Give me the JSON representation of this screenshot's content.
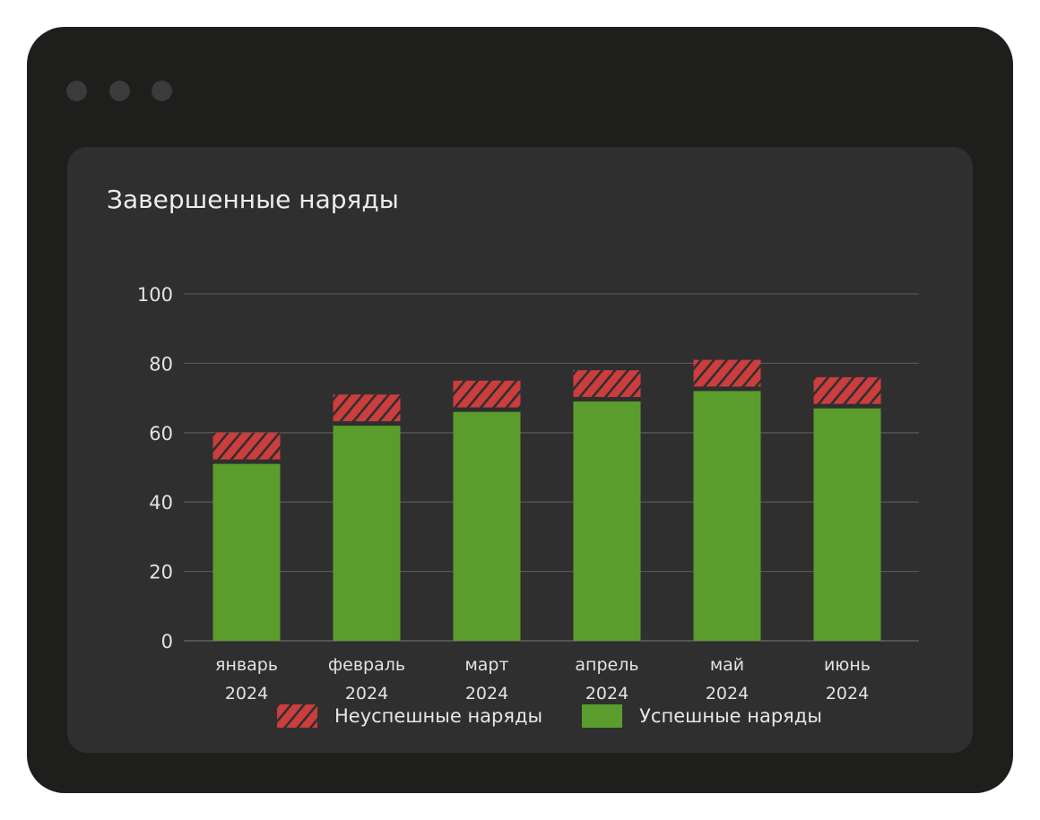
{
  "chart_data": {
    "type": "bar",
    "stacked": true,
    "title": "Завершенные наряды",
    "categories": [
      [
        "январь",
        "2024"
      ],
      [
        "февраль",
        "2024"
      ],
      [
        "март",
        "2024"
      ],
      [
        "апрель",
        "2024"
      ],
      [
        "май",
        "2024"
      ],
      [
        "июнь",
        "2024"
      ]
    ],
    "series": [
      {
        "name": "Успешные наряды",
        "color": "#5a9d2d",
        "pattern": "solid",
        "values": [
          51,
          62,
          66,
          69,
          72,
          67
        ]
      },
      {
        "name": "Неуспешные наряды",
        "color": "#cc3d3d",
        "pattern": "hatched",
        "values": [
          9,
          9,
          9,
          9,
          9,
          9
        ]
      }
    ],
    "ylim": [
      0,
      100
    ],
    "yticks": [
      0,
      20,
      40,
      60,
      80,
      100
    ],
    "grid": true,
    "legend": {
      "placement": "bottom",
      "order": [
        "Неуспешные наряды",
        "Успешные наряды"
      ]
    },
    "xlabel": "",
    "ylabel": ""
  }
}
